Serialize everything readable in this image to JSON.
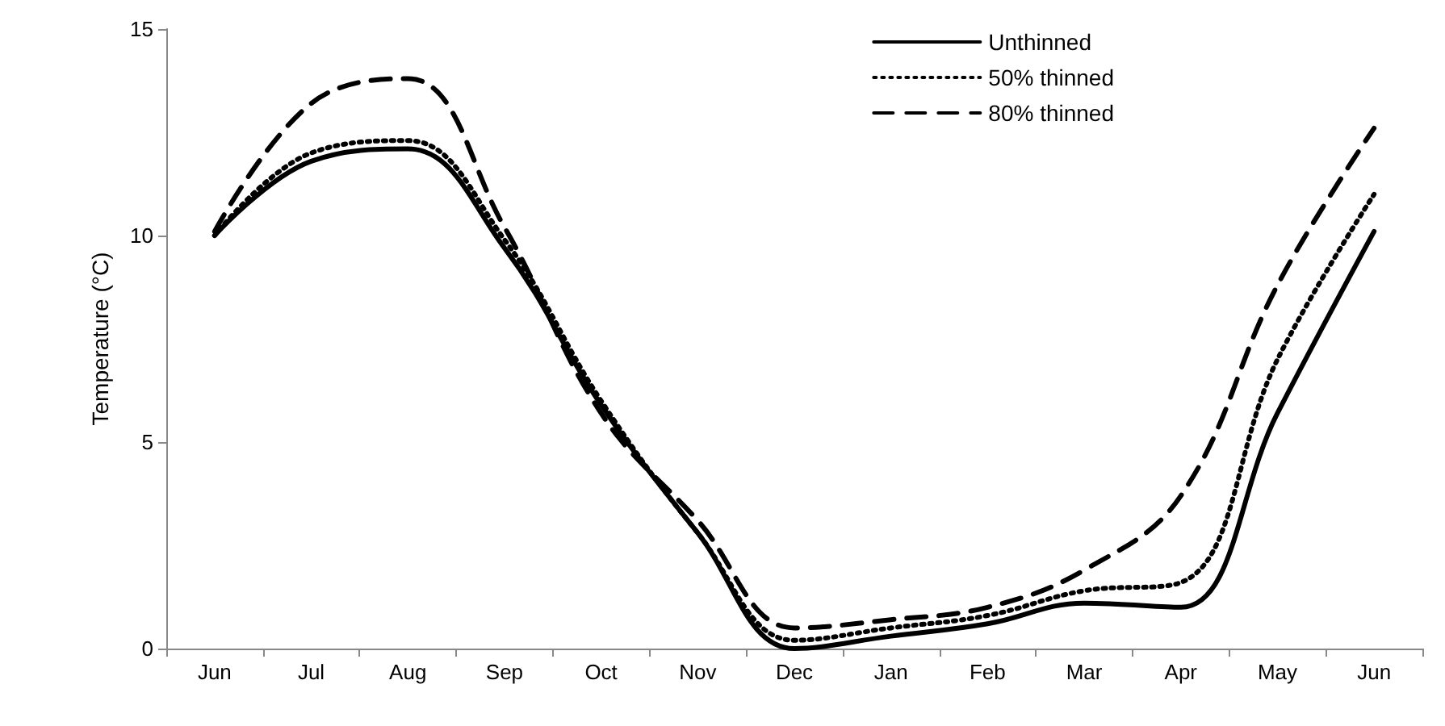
{
  "chart_data": {
    "type": "line",
    "ylabel": "Temperature (°C)",
    "categories": [
      "Jun",
      "Jul",
      "Aug",
      "Sep",
      "Oct",
      "Nov",
      "Dec",
      "Jan",
      "Feb",
      "Mar",
      "Apr",
      "May",
      "Jun"
    ],
    "series": [
      {
        "name": "Unthinned",
        "color": "#000000",
        "line_style": "solid",
        "values": [
          10.0,
          11.8,
          12.1,
          9.7,
          5.9,
          2.8,
          0.0,
          0.3,
          0.6,
          1.1,
          1.0,
          5.7,
          10.1
        ]
      },
      {
        "name": "50% thinned",
        "color": "#000000",
        "line_style": "dotted",
        "values": [
          10.0,
          12.0,
          12.3,
          9.9,
          6.0,
          2.8,
          0.2,
          0.5,
          0.8,
          1.4,
          1.6,
          7.0,
          11.0
        ]
      },
      {
        "name": "80% thinned",
        "color": "#000000",
        "line_style": "dashed",
        "values": [
          10.1,
          13.2,
          13.8,
          10.2,
          5.7,
          3.1,
          0.5,
          0.7,
          1.0,
          1.9,
          3.7,
          8.8,
          12.6
        ]
      }
    ],
    "ylim": [
      0,
      15
    ],
    "yticks": [
      0,
      5,
      10,
      15
    ],
    "grid": false,
    "legend": "top right",
    "marker": "none"
  }
}
